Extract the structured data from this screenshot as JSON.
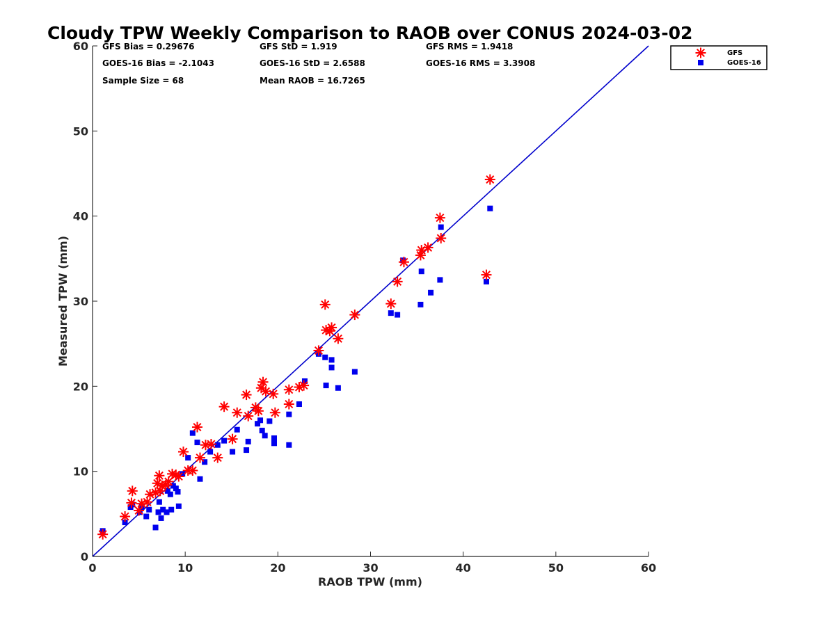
{
  "chart_data": {
    "type": "scatter",
    "title": "Cloudy TPW Weekly Comparison to RAOB over CONUS 2024-03-02",
    "xlabel": "RAOB TPW (mm)",
    "ylabel": "Measured TPW (mm)",
    "xlim": [
      0,
      60
    ],
    "ylim": [
      0,
      60
    ],
    "xticks": [
      "0",
      "10",
      "20",
      "30",
      "40",
      "50",
      "60"
    ],
    "yticks": [
      "0",
      "10",
      "20",
      "30",
      "40",
      "50",
      "60"
    ],
    "grid": false,
    "legend_position": "outside top-right",
    "reference_line": {
      "description": "1:1 line",
      "color": "#0000cc"
    },
    "stats": {
      "gfs_bias": "GFS Bias = 0.29676",
      "gfs_std": "GFS StD = 1.919",
      "gfs_rms": "GFS RMS = 1.9418",
      "goes_bias": "GOES-16 Bias = -2.1043",
      "goes_std": "GOES-16 StD = 2.6588",
      "goes_rms": "GOES-16 RMS = 3.3908",
      "sample_size": "Sample Size = 68",
      "mean_raob": "Mean RAOB = 16.7265"
    },
    "series": [
      {
        "name": "GFS",
        "marker": "asterisk",
        "color": "#ff0000",
        "points": [
          [
            1.1,
            2.6
          ],
          [
            3.5,
            4.7
          ],
          [
            4.2,
            6.3
          ],
          [
            4.3,
            7.7
          ],
          [
            5.0,
            5.4
          ],
          [
            5.3,
            6.2
          ],
          [
            5.9,
            6.4
          ],
          [
            6.2,
            7.3
          ],
          [
            6.8,
            7.5
          ],
          [
            7.0,
            8.6
          ],
          [
            7.2,
            9.5
          ],
          [
            7.3,
            7.7
          ],
          [
            7.5,
            8.3
          ],
          [
            7.9,
            8.4
          ],
          [
            8.2,
            8.8
          ],
          [
            8.6,
            9.7
          ],
          [
            9.0,
            9.6
          ],
          [
            9.3,
            9.4
          ],
          [
            9.8,
            12.3
          ],
          [
            10.3,
            10.1
          ],
          [
            10.8,
            10.1
          ],
          [
            11.3,
            15.2
          ],
          [
            11.6,
            11.6
          ],
          [
            12.2,
            13.1
          ],
          [
            12.8,
            13.2
          ],
          [
            13.5,
            11.6
          ],
          [
            14.2,
            17.6
          ],
          [
            15.1,
            13.8
          ],
          [
            15.6,
            16.9
          ],
          [
            16.6,
            19.0
          ],
          [
            16.8,
            16.5
          ],
          [
            17.6,
            17.5
          ],
          [
            17.9,
            17.1
          ],
          [
            18.2,
            19.8
          ],
          [
            18.4,
            20.5
          ],
          [
            18.7,
            19.4
          ],
          [
            19.5,
            19.1
          ],
          [
            19.7,
            16.9
          ],
          [
            21.2,
            19.6
          ],
          [
            21.2,
            17.9
          ],
          [
            22.3,
            19.9
          ],
          [
            22.8,
            20.1
          ],
          [
            24.4,
            24.2
          ],
          [
            25.1,
            29.6
          ],
          [
            25.2,
            26.6
          ],
          [
            25.6,
            26.5
          ],
          [
            25.8,
            26.9
          ],
          [
            26.5,
            25.6
          ],
          [
            28.3,
            28.4
          ],
          [
            32.2,
            29.7
          ],
          [
            32.9,
            32.3
          ],
          [
            33.6,
            34.6
          ],
          [
            35.4,
            35.4
          ],
          [
            35.5,
            36.0
          ],
          [
            36.2,
            36.3
          ],
          [
            37.5,
            39.8
          ],
          [
            37.6,
            37.4
          ],
          [
            42.5,
            33.1
          ],
          [
            42.9,
            44.3
          ]
        ]
      },
      {
        "name": "GOES-16",
        "marker": "square",
        "color": "#0000ee",
        "points": [
          [
            1.1,
            3.0
          ],
          [
            3.5,
            4.0
          ],
          [
            4.1,
            5.8
          ],
          [
            4.3,
            6.1
          ],
          [
            5.1,
            5.2
          ],
          [
            5.3,
            5.8
          ],
          [
            5.8,
            4.7
          ],
          [
            6.1,
            5.5
          ],
          [
            6.8,
            3.4
          ],
          [
            7.1,
            5.2
          ],
          [
            7.2,
            6.4
          ],
          [
            7.4,
            4.5
          ],
          [
            7.6,
            5.5
          ],
          [
            8.0,
            5.2
          ],
          [
            8.1,
            7.7
          ],
          [
            8.4,
            7.3
          ],
          [
            8.5,
            5.5
          ],
          [
            8.7,
            8.3
          ],
          [
            9.0,
            8.0
          ],
          [
            9.2,
            7.6
          ],
          [
            9.3,
            5.9
          ],
          [
            9.7,
            9.7
          ],
          [
            10.3,
            11.6
          ],
          [
            10.8,
            14.5
          ],
          [
            11.3,
            13.4
          ],
          [
            11.6,
            9.1
          ],
          [
            12.1,
            11.1
          ],
          [
            12.7,
            12.3
          ],
          [
            13.5,
            13.1
          ],
          [
            14.2,
            13.6
          ],
          [
            15.1,
            12.3
          ],
          [
            15.6,
            14.9
          ],
          [
            16.6,
            12.5
          ],
          [
            16.8,
            13.5
          ],
          [
            17.8,
            15.6
          ],
          [
            18.1,
            16.0
          ],
          [
            18.3,
            14.8
          ],
          [
            18.6,
            14.2
          ],
          [
            19.1,
            15.9
          ],
          [
            19.6,
            13.9
          ],
          [
            19.6,
            13.3
          ],
          [
            21.2,
            16.7
          ],
          [
            21.2,
            13.1
          ],
          [
            22.3,
            17.9
          ],
          [
            22.9,
            20.6
          ],
          [
            24.4,
            23.8
          ],
          [
            25.1,
            23.4
          ],
          [
            25.2,
            20.1
          ],
          [
            25.8,
            22.2
          ],
          [
            25.8,
            23.1
          ],
          [
            26.5,
            19.8
          ],
          [
            28.3,
            21.7
          ],
          [
            32.2,
            28.6
          ],
          [
            32.9,
            28.4
          ],
          [
            33.5,
            34.8
          ],
          [
            35.4,
            29.6
          ],
          [
            35.5,
            33.5
          ],
          [
            36.5,
            31.0
          ],
          [
            37.5,
            32.5
          ],
          [
            37.6,
            38.7
          ],
          [
            42.5,
            32.3
          ],
          [
            42.9,
            40.9
          ]
        ]
      }
    ]
  }
}
